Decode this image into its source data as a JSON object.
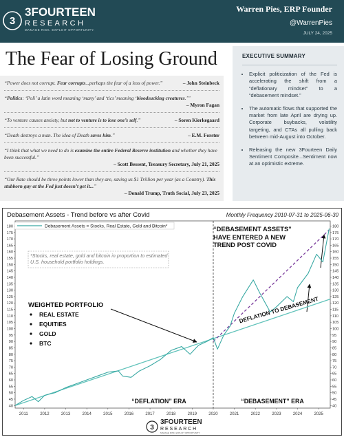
{
  "header": {
    "brand": "3FOURTEEN",
    "brand_sub": "RESEARCH",
    "tagline": "MANAGE RISK. EXPLOIT OPPORTUNITY.",
    "author": "Warren Pies, ERP Founder",
    "handle": "@WarrenPies",
    "date": "JULY 24, 2025"
  },
  "title": "The Fear of Losing Ground",
  "quotes": [
    {
      "parts": [
        "“Power does not corrupt. ",
        "Fear corrupts",
        "...perhaps the fear of a loss of power.”"
      ],
      "attribution": "– John Steinbeck"
    },
    {
      "parts": [
        "“",
        "Politics",
        ": ‘Poli’ a latin word meaning ‘many’ and ‘tics’ meaning ‘",
        "bloodsucking creatures",
        ".’”"
      ],
      "attribution": "– Myron Fagan"
    },
    {
      "parts": [
        "“To venture causes anxiety, but ",
        "not to venture is to lose one’s self",
        ".”"
      ],
      "attribution": "– Soren Kierkegaard"
    },
    {
      "parts": [
        "“Death destroys a man. The idea of Death ",
        "saves him",
        ".”"
      ],
      "attribution": "– E.M. Forster"
    },
    {
      "parts": [
        "“I think that what we need to do is ",
        "examine the entire Federal Reserve institution",
        " and whether they have been successful.”"
      ],
      "attribution": "– Scott Bessent, Treasury Secretary, July 21, 2025"
    },
    {
      "parts": [
        "“Our Rate should be three points lower than they are, saving us $1 Trillion per year (as a Country). ",
        "This stubborn guy at the Fed just doesn’t get it...",
        "”"
      ],
      "attribution": "– Donald Trump, Truth Social, July 23, 2025"
    }
  ],
  "summary": {
    "title": "EXECUTIVE SUMMARY",
    "bullets": [
      "Explicit politicization of the Fed is accelerating the shift from a “deflationary mindset” to a “debasement mindset.”",
      "The automatic flows that supported the market from late April are drying up. Corporate buybacks, volatility targeting, and CTAs all pulling back between mid-August into October.",
      "Releasing the new 3Fourteen Daily Sentiment Composite...Sentiment now at an optimistic extreme."
    ]
  },
  "chart_data": {
    "type": "line",
    "title": "Debasement Assets - Trend before vs after Covid",
    "subtitle": "Monthly Frequency 2010-07-31 to 2025-06-30",
    "x": [
      2010.6,
      2011.0,
      2011.4,
      2011.7,
      2012.0,
      2012.5,
      2013.0,
      2013.5,
      2014.0,
      2014.5,
      2015.0,
      2015.5,
      2015.7,
      2016.1,
      2016.5,
      2017.0,
      2017.5,
      2018.0,
      2018.5,
      2018.9,
      2019.3,
      2019.7,
      2020.0,
      2020.2,
      2020.5,
      2020.8,
      2021.0,
      2021.4,
      2021.9,
      2022.2,
      2022.7,
      2023.0,
      2023.5,
      2023.8,
      2024.0,
      2024.5,
      2024.9,
      2025.2,
      2025.5
    ],
    "series": [
      {
        "name": "Debasement Assets = Stocks, Real Estate, Gold and Bitcoin*",
        "color": "#3aa9a4",
        "values": [
          40,
          44,
          47,
          43,
          48,
          50,
          54,
          57,
          60,
          63,
          66,
          67,
          63,
          62,
          67,
          71,
          76,
          83,
          86,
          80,
          87,
          90,
          93,
          84,
          95,
          102,
          112,
          125,
          138,
          128,
          113,
          117,
          125,
          121,
          132,
          143,
          158,
          152,
          178
        ]
      }
    ],
    "trends": [
      {
        "color": "#62c3bb",
        "dash": false,
        "x": [
          2010.6,
          2025.55
        ],
        "values": [
          40,
          123
        ]
      },
      {
        "color": "#7a3b9c",
        "dash": true,
        "x": [
          2020.0,
          2025.5
        ],
        "values": [
          90,
          177
        ]
      }
    ],
    "divider_x": 2020,
    "xlim": [
      2010.6,
      2025.55
    ],
    "xticks": [
      2011,
      2012,
      2013,
      2014,
      2015,
      2016,
      2017,
      2018,
      2019,
      2020,
      2021,
      2022,
      2023,
      2024,
      2025
    ],
    "ylim": [
      38,
      184
    ],
    "yticks": [
      40,
      45,
      50,
      55,
      60,
      65,
      70,
      75,
      80,
      85,
      90,
      95,
      100,
      105,
      110,
      115,
      120,
      125,
      130,
      135,
      140,
      145,
      150,
      155,
      160,
      165,
      170,
      175,
      180
    ],
    "grid": false,
    "note": "*Stocks, real estate, gold and bitcoin in proportion to estimated U.S. household portfolio holdings.",
    "annotations": {
      "portfolio": "WEIGHTED PORTFOLIO",
      "holdings": [
        "REAL ESTATE",
        "EQUITIES",
        "GOLD",
        "BTC"
      ],
      "new_trend": "“DEBASEMENT ASSETS” HAVE ENTERED A NEW TREND POST COVID",
      "shift": "DEFLATION TO DEBASEMENT",
      "era_before": "“DEFLATION” ERA",
      "era_after": "“DEBASEMENT” ERA"
    }
  }
}
